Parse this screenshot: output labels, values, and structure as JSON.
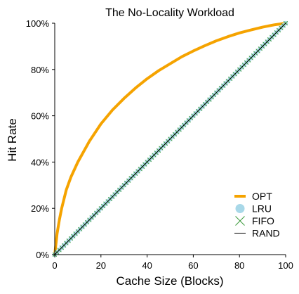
{
  "chart_data": {
    "type": "line",
    "title": "The No-Locality Workload",
    "xlabel": "Cache Size (Blocks)",
    "ylabel": "Hit Rate",
    "xlim": [
      0,
      100
    ],
    "ylim": [
      0,
      100
    ],
    "xticks": [
      0,
      20,
      40,
      60,
      80,
      100
    ],
    "yticks": [
      0,
      20,
      40,
      60,
      80,
      100
    ],
    "xtick_labels": [
      "0",
      "20",
      "40",
      "60",
      "80",
      "100"
    ],
    "ytick_labels": [
      "0%",
      "20%",
      "40%",
      "60%",
      "80%",
      "100%"
    ],
    "legend_position": "bottom-right",
    "grid": false,
    "series": [
      {
        "name": "OPT",
        "style": "line",
        "color": "#f5a300",
        "x": [
          0,
          1,
          2,
          3,
          4,
          5,
          7,
          10,
          15,
          20,
          25,
          30,
          35,
          40,
          45,
          50,
          55,
          60,
          65,
          70,
          75,
          80,
          85,
          90,
          95,
          100
        ],
        "y": [
          0,
          9,
          15,
          20,
          24,
          28,
          33.5,
          40,
          49,
          56.5,
          62.5,
          67.5,
          72,
          76,
          79.5,
          82.5,
          85.5,
          88,
          90.3,
          92.4,
          94.2,
          95.8,
          97.1,
          98.3,
          99.3,
          100
        ]
      },
      {
        "name": "LRU",
        "style": "marker-circle",
        "color": "#a8d8e8",
        "x": [
          0,
          10,
          20,
          30,
          40,
          50,
          60,
          70,
          80,
          90,
          100
        ],
        "y": [
          0,
          10,
          20,
          30,
          40,
          50,
          60,
          70,
          80,
          90,
          100
        ]
      },
      {
        "name": "FIFO",
        "style": "marker-x",
        "color": "#3c9a3c",
        "x": [
          0,
          10,
          20,
          30,
          40,
          50,
          60,
          70,
          80,
          90,
          100
        ],
        "y": [
          0,
          10,
          20,
          30,
          40,
          50,
          60,
          70,
          80,
          90,
          100
        ]
      },
      {
        "name": "RAND",
        "style": "line",
        "color": "#000000",
        "x": [
          0,
          10,
          20,
          30,
          40,
          50,
          60,
          70,
          80,
          90,
          100
        ],
        "y": [
          0,
          10,
          20,
          30,
          40,
          50,
          60,
          70,
          80,
          90,
          100
        ]
      }
    ]
  }
}
